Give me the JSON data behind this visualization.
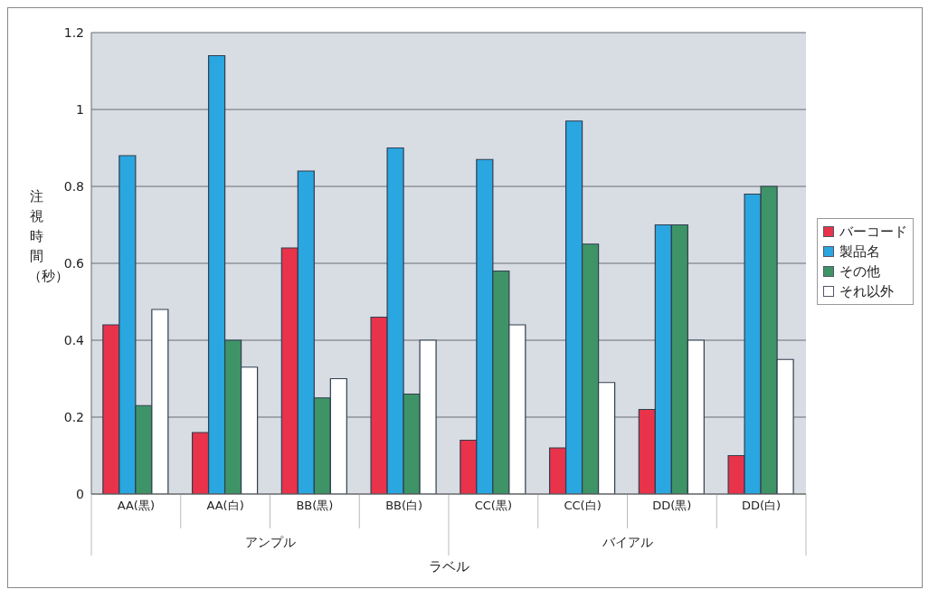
{
  "chart_data": {
    "type": "bar",
    "xlabel": "ラベル",
    "ylabel": "注視時間（秒）",
    "categories": [
      "AA(黒)",
      "AA(白)",
      "BB(黒)",
      "BB(白)",
      "CC(黒)",
      "CC(白)",
      "DD(黒)",
      "DD(白)"
    ],
    "series": [
      {
        "name": "バーコード",
        "color": "#e8334a",
        "values": [
          0.44,
          0.16,
          0.64,
          0.46,
          0.14,
          0.12,
          0.22,
          0.1
        ]
      },
      {
        "name": "製品名",
        "color": "#2aa6e0",
        "values": [
          0.88,
          1.14,
          0.84,
          0.9,
          0.87,
          0.97,
          0.7,
          0.78
        ]
      },
      {
        "name": "その他",
        "color": "#3e9466",
        "values": [
          0.23,
          0.4,
          0.25,
          0.26,
          0.58,
          0.65,
          0.7,
          0.8
        ]
      },
      {
        "name": "それ以外",
        "color": "#ffffff",
        "values": [
          0.48,
          0.33,
          0.3,
          0.4,
          0.44,
          0.29,
          0.4,
          0.35
        ]
      }
    ],
    "annotations": [
      "アンプル",
      "バイアル"
    ],
    "ylim": [
      0,
      1.2
    ],
    "yticks": [
      0,
      0.2,
      0.4,
      0.6,
      0.8,
      1,
      1.2
    ],
    "grid": "y",
    "legend": "right"
  }
}
